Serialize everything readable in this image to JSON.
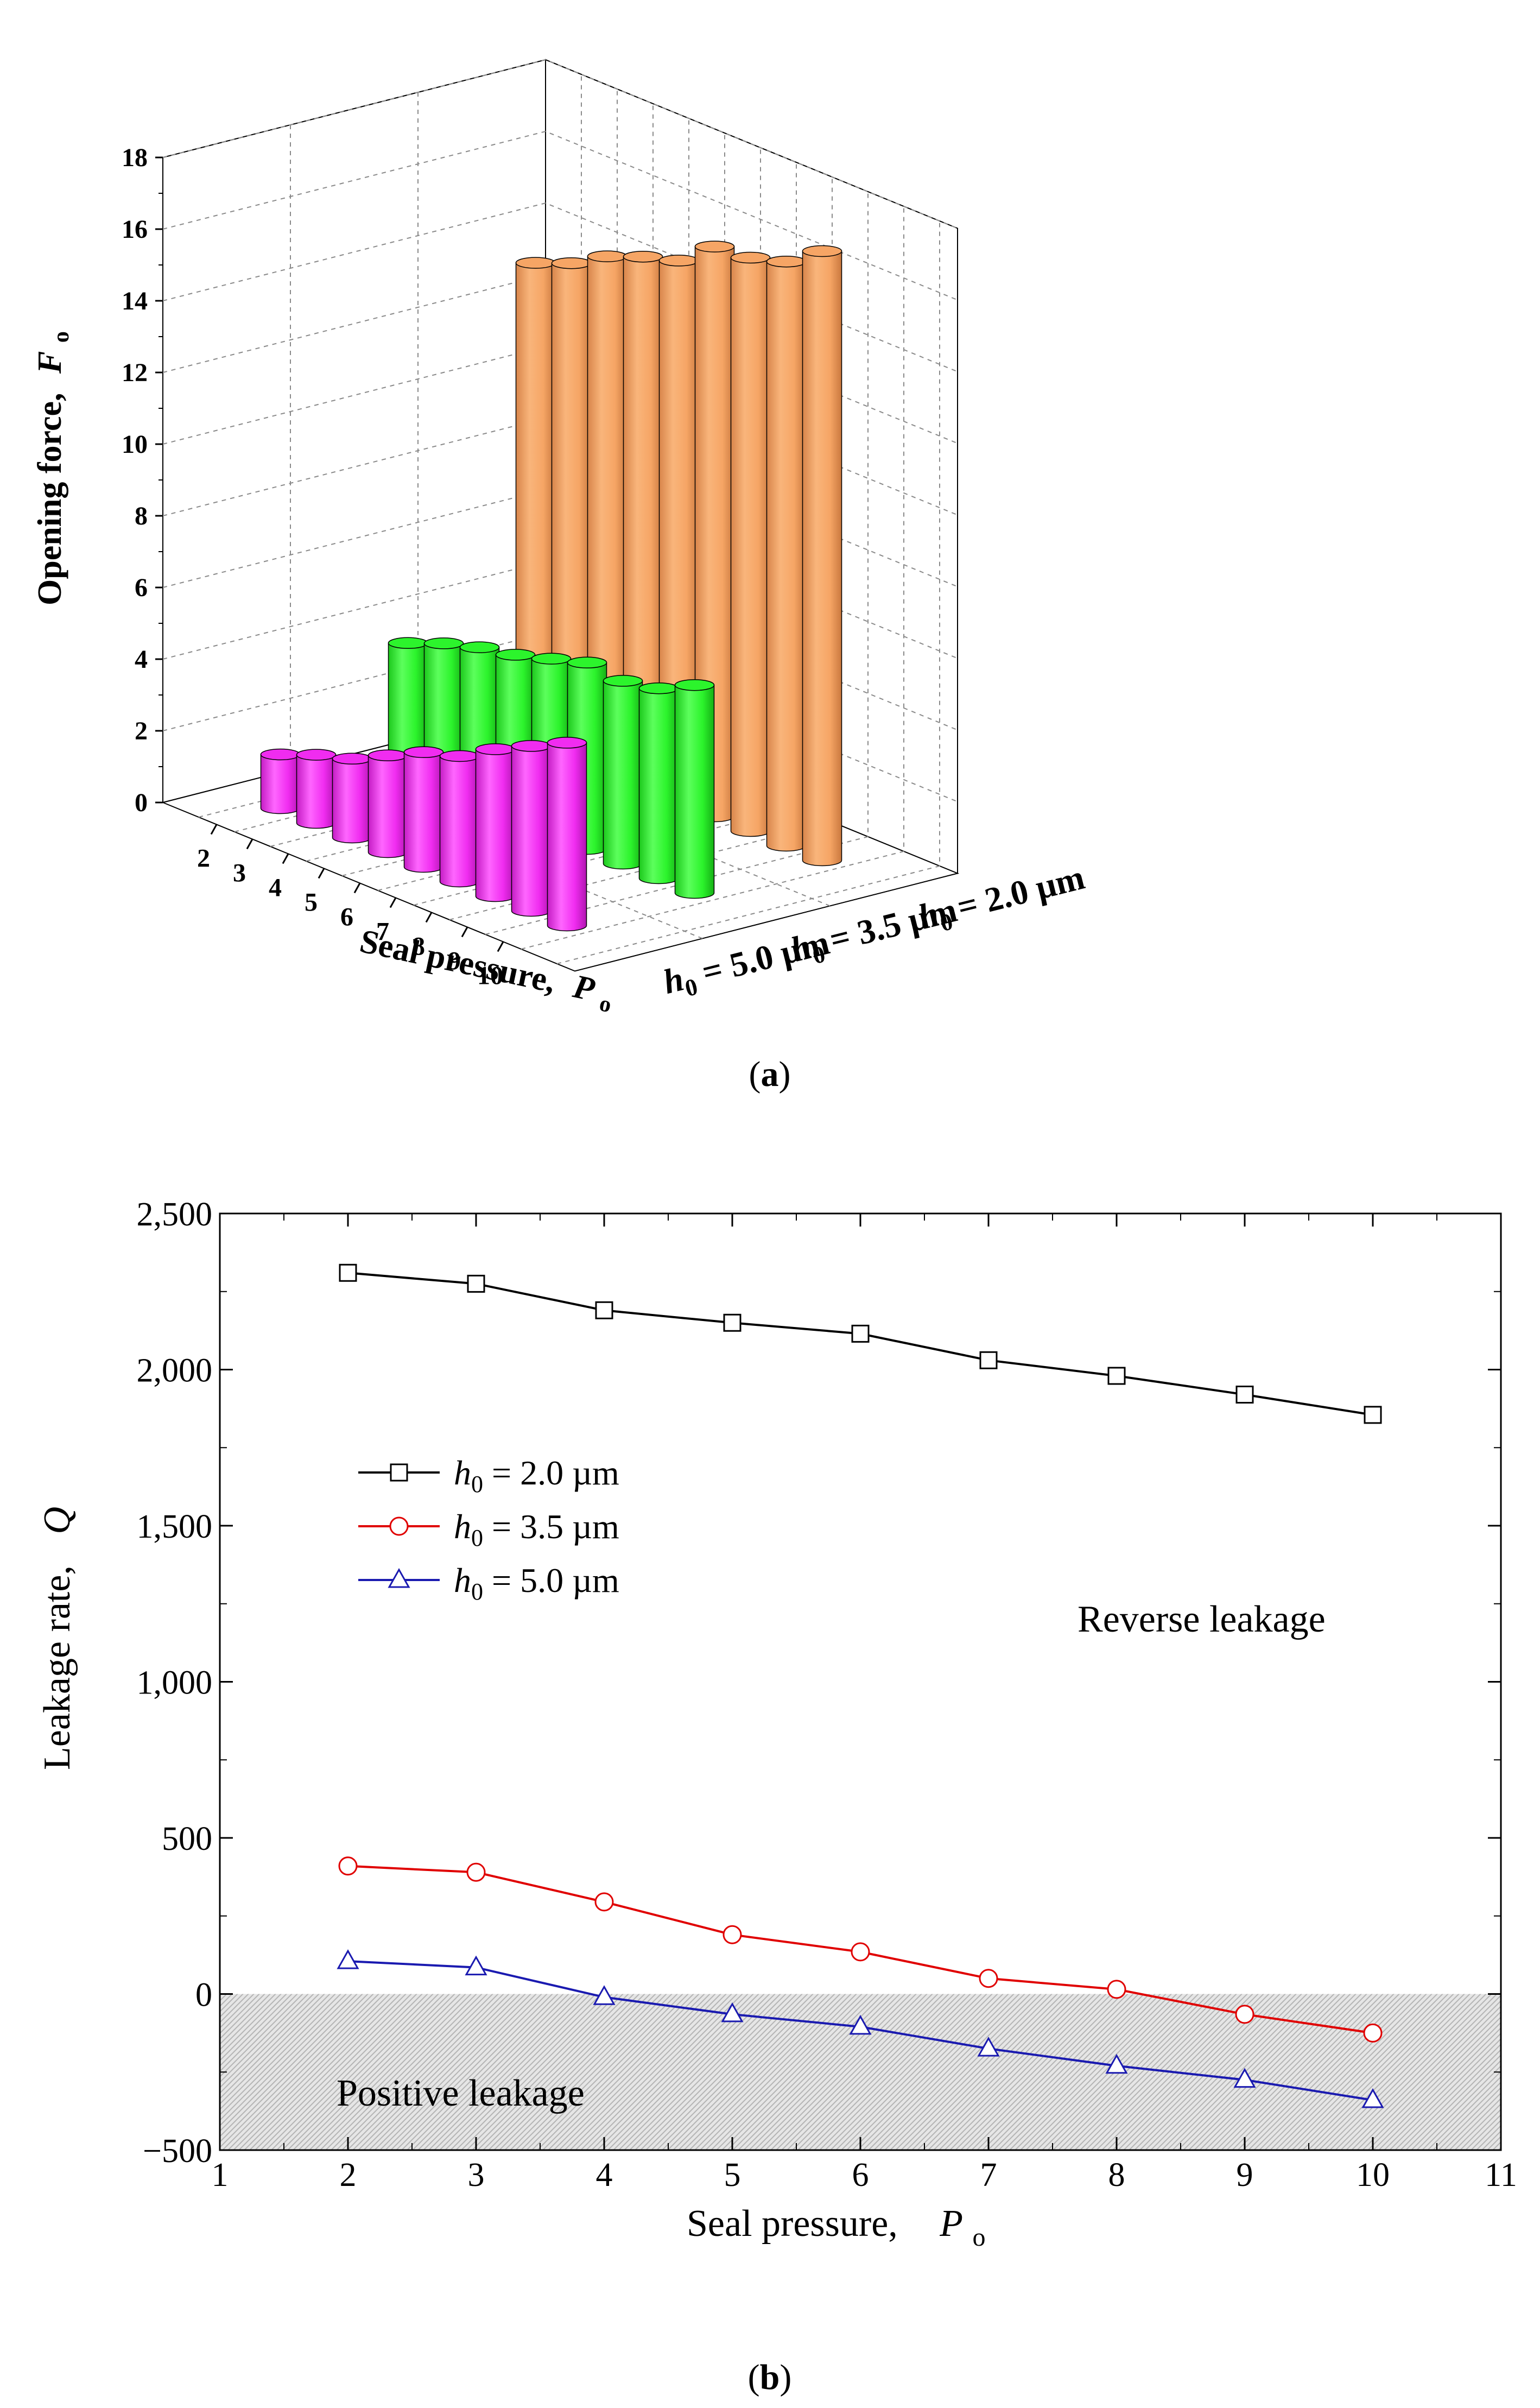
{
  "panel_a": {
    "caption": "(a)",
    "caption_parts": [
      "(",
      "a",
      ")"
    ],
    "chart_data": {
      "type": "bar",
      "title": "",
      "ylabel": "Opening force,",
      "ylabel_symbol": "F",
      "ylabel_sub": "o",
      "xlabel": "Seal pressure,",
      "xlabel_symbol": "P",
      "xlabel_sub": "o",
      "ylim": [
        0,
        18
      ],
      "yticks": [
        "0",
        "2",
        "4",
        "6",
        "8",
        "10",
        "12",
        "14",
        "16",
        "18"
      ],
      "categories": [
        "2",
        "3",
        "4",
        "5",
        "6",
        "7",
        "8",
        "9",
        "10"
      ],
      "series": [
        {
          "name": "h0 = 2.0 µm",
          "label_symbol": "h",
          "label_sub": "0",
          "label_value": " = 2.0 µm",
          "color": "#f6a565",
          "values": [
            13.4,
            13.8,
            14.4,
            14.8,
            15.1,
            15.9,
            16.0,
            16.3,
            17.0
          ]
        },
        {
          "name": "h0 = 3.5 µm",
          "label_symbol": "h",
          "label_sub": "0",
          "label_value": " = 3.5 µm",
          "color": "#2cf42c",
          "values": [
            3.7,
            4.1,
            4.4,
            4.6,
            4.9,
            5.2,
            5.1,
            5.3,
            5.8
          ]
        },
        {
          "name": "h0 = 5.0 µm",
          "label_symbol": "h",
          "label_sub": "0",
          "label_value": " = 5.0 µm",
          "color": "#f02cf0",
          "values": [
            1.5,
            1.9,
            2.2,
            2.7,
            3.2,
            3.5,
            4.1,
            4.6,
            5.1
          ]
        }
      ]
    }
  },
  "panel_b": {
    "caption": "(b)",
    "caption_parts": [
      "(",
      "b",
      ")"
    ],
    "chart_data": {
      "type": "line",
      "title": "",
      "xlabel": "Seal pressure,",
      "xlabel_symbol": "P",
      "xlabel_sub": "o",
      "ylabel": "Leakage rate,",
      "ylabel_symbol": "Q",
      "xlim": [
        1,
        11
      ],
      "ylim": [
        -500,
        2500
      ],
      "xticks": [
        "1",
        "2",
        "3",
        "4",
        "5",
        "6",
        "7",
        "8",
        "9",
        "10",
        "11"
      ],
      "yticks": [
        "−500",
        "0",
        "500",
        "1,000",
        "1,500",
        "2,000",
        "2,500"
      ],
      "x": [
        2,
        3,
        4,
        5,
        6,
        7,
        8,
        9,
        10
      ],
      "series": [
        {
          "name": "h0 = 2.0 µm",
          "label_symbol": "h",
          "label_sub": "0",
          "label_value": " = 2.0 µm",
          "color": "#000000",
          "marker": "square",
          "values": [
            2310,
            2275,
            2190,
            2150,
            2115,
            2030,
            1980,
            1920,
            1855
          ]
        },
        {
          "name": "h0 = 3.5 µm",
          "label_symbol": "h",
          "label_sub": "0",
          "label_value": " = 3.5 µm",
          "color": "#e00000",
          "marker": "circle",
          "values": [
            410,
            390,
            295,
            190,
            135,
            50,
            15,
            -65,
            -125
          ]
        },
        {
          "name": "h0 = 5.0 µm",
          "label_symbol": "h",
          "label_sub": "0",
          "label_value": " = 5.0 µm",
          "color": "#1a1ab0",
          "marker": "triangle",
          "values": [
            105,
            85,
            -10,
            -65,
            -105,
            -175,
            -230,
            -275,
            -340
          ]
        }
      ],
      "legend_position": "upper-left",
      "annotations": [
        "Reverse leakage",
        "Positive leakage"
      ],
      "shaded_region": {
        "from": -500,
        "to": 0,
        "label": "Positive leakage"
      }
    }
  }
}
